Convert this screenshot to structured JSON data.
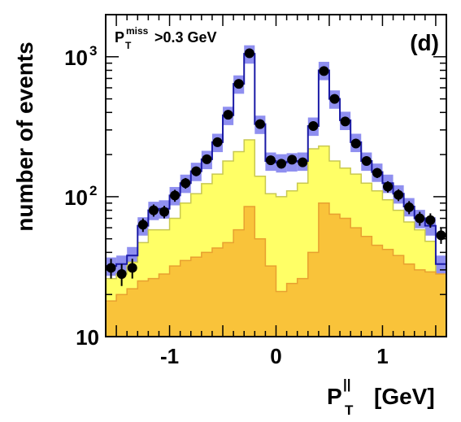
{
  "chart_data": {
    "type": "histogram",
    "panel_label": "(d)",
    "cut_annotation": {
      "symbol": "P",
      "subscript": "T",
      "superscript": "miss",
      "condition": ">0.3 GeV"
    },
    "xlabel": {
      "symbol": "P",
      "subscript": "T",
      "superscript": "||",
      "unit": "[GeV]"
    },
    "ylabel": "number of events",
    "xlim": [
      -1.6,
      1.6
    ],
    "ylim": [
      10,
      2000
    ],
    "y_scale": "log",
    "x_ticks": [
      {
        "value": -1,
        "label": "-1"
      },
      {
        "value": 0,
        "label": "0"
      },
      {
        "value": 1,
        "label": "1"
      }
    ],
    "y_ticks": [
      {
        "value": 10,
        "label": "10",
        "exp": ""
      },
      {
        "value": 100,
        "label": "10",
        "exp": "2"
      },
      {
        "value": 1000,
        "label": "10",
        "exp": "3"
      }
    ],
    "bin_edges": [
      -1.6,
      -1.5,
      -1.4,
      -1.3,
      -1.2,
      -1.1,
      -1.0,
      -0.9,
      -0.8,
      -0.7,
      -0.6,
      -0.5,
      -0.4,
      -0.3,
      -0.2,
      -0.1,
      0.0,
      0.1,
      0.2,
      0.3,
      0.4,
      0.5,
      0.6,
      0.7,
      0.8,
      0.9,
      1.0,
      1.1,
      1.2,
      1.3,
      1.4,
      1.5,
      1.6
    ],
    "series": [
      {
        "style": "total-mc-line-with-band",
        "color": "#1a1aa6",
        "band_color": "#8f8ff0",
        "values": [
          32,
          33,
          38,
          62,
          80,
          82,
          102,
          125,
          152,
          185,
          245,
          382,
          640,
          1050,
          330,
          180,
          175,
          178,
          180,
          320,
          800,
          500,
          352,
          245,
          180,
          150,
          125,
          105,
          85,
          70,
          62,
          33
        ],
        "band_frac": 0.15
      },
      {
        "style": "filled",
        "color": "#ffff66",
        "edge_color": "#c8c850",
        "values": [
          26,
          28,
          34,
          47,
          58,
          58,
          70,
          90,
          105,
          124,
          145,
          180,
          210,
          255,
          140,
          105,
          100,
          110,
          125,
          220,
          230,
          180,
          160,
          145,
          125,
          110,
          95,
          80,
          66,
          58,
          48,
          26
        ]
      },
      {
        "style": "filled",
        "color": "#f9c33a",
        "edge_color": "#e8a030",
        "values": [
          18,
          20,
          22,
          25,
          26,
          28,
          32,
          35,
          37,
          40,
          43,
          47,
          58,
          85,
          50,
          32,
          21,
          24,
          26,
          40,
          90,
          75,
          70,
          60,
          52,
          45,
          42,
          38,
          33,
          30,
          29,
          28
        ]
      }
    ],
    "data_points": {
      "name": "data",
      "color": "#000000",
      "x": [
        -1.55,
        -1.45,
        -1.35,
        -1.25,
        -1.15,
        -1.05,
        -0.95,
        -0.85,
        -0.75,
        -0.65,
        -0.55,
        -0.45,
        -0.35,
        -0.25,
        -0.15,
        -0.05,
        0.05,
        0.15,
        0.25,
        0.35,
        0.45,
        0.55,
        0.65,
        0.75,
        0.85,
        0.95,
        1.05,
        1.15,
        1.25,
        1.35,
        1.45,
        1.55
      ],
      "y": [
        31,
        28,
        31,
        63,
        80,
        78,
        102,
        125,
        152,
        185,
        245,
        385,
        640,
        1060,
        330,
        182,
        172,
        184,
        176,
        320,
        790,
        500,
        345,
        240,
        180,
        148,
        118,
        103,
        84,
        70,
        68,
        53
      ],
      "err": [
        5,
        5,
        5,
        7,
        8,
        8,
        10,
        11,
        12,
        13,
        15,
        19,
        25,
        32,
        18,
        13,
        13,
        13,
        13,
        18,
        28,
        22,
        18,
        15,
        13,
        12,
        11,
        10,
        9,
        8,
        8,
        7
      ]
    }
  }
}
